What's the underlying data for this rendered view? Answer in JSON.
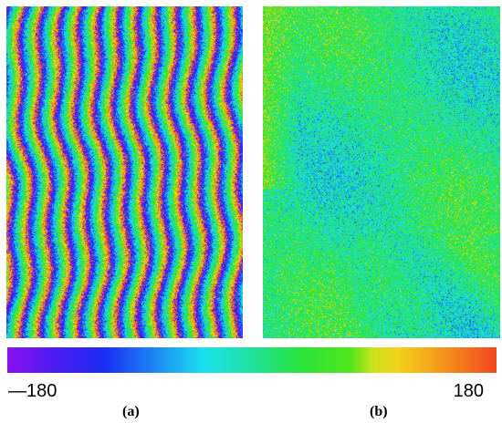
{
  "colorbar": {
    "min_label": "—180",
    "max_label": "180",
    "colors": [
      "#8a12f0",
      "#1b2ff5",
      "#19e0ee",
      "#29e33a",
      "#f2d11b",
      "#f2461d"
    ]
  },
  "panels": [
    {
      "label": "(a)"
    },
    {
      "label": "(b)"
    }
  ]
}
